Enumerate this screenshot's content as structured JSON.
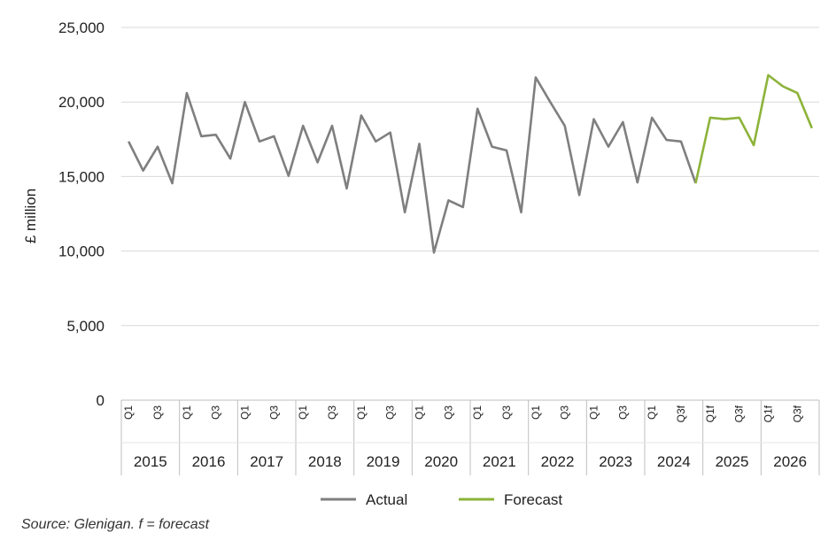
{
  "chart_data": {
    "type": "line",
    "title": "",
    "ylabel": "£ million",
    "xlabel": "",
    "ylim": [
      0,
      25000
    ],
    "yticks": [
      "0",
      "5,000",
      "10,000",
      "15,000",
      "20,000",
      "25,000"
    ],
    "ytick_values": [
      0,
      5000,
      10000,
      15000,
      20000,
      25000
    ],
    "grid": "horizontal",
    "legend_position": "bottom",
    "years": [
      "2015",
      "2016",
      "2017",
      "2018",
      "2019",
      "2020",
      "2021",
      "2022",
      "2023",
      "2024",
      "2025",
      "2026"
    ],
    "quarter_labels": [
      [
        "Q1",
        "Q3"
      ],
      [
        "Q1",
        "Q3"
      ],
      [
        "Q1",
        "Q3"
      ],
      [
        "Q1",
        "Q3"
      ],
      [
        "Q1",
        "Q3"
      ],
      [
        "Q1",
        "Q3"
      ],
      [
        "Q1",
        "Q3"
      ],
      [
        "Q1",
        "Q3"
      ],
      [
        "Q1",
        "Q3"
      ],
      [
        "Q1",
        "Q3f"
      ],
      [
        "Q1f",
        "Q3f"
      ],
      [
        "Q1f",
        "Q3f"
      ]
    ],
    "series": [
      {
        "name": "Actual",
        "color": "#7f7f7f",
        "start_index": 0,
        "values": [
          17350,
          15400,
          17000,
          14550,
          20600,
          17700,
          17800,
          16200,
          20000,
          17350,
          17700,
          15050,
          18400,
          15950,
          18400,
          14200,
          19100,
          17350,
          17950,
          12600,
          17200,
          9900,
          13400,
          12950,
          19550,
          17000,
          16750,
          12600,
          21650,
          20000,
          18400,
          13750,
          18850,
          17000,
          18650,
          14600,
          18950,
          17450,
          17350,
          14550
        ]
      },
      {
        "name": "Forecast",
        "color": "#8db33a",
        "start_index": 39,
        "values": [
          14550,
          18950,
          18850,
          18950,
          17100,
          21800,
          21050,
          20600,
          18250
        ]
      }
    ]
  },
  "source_note": "Source: Glenigan.   f = forecast"
}
